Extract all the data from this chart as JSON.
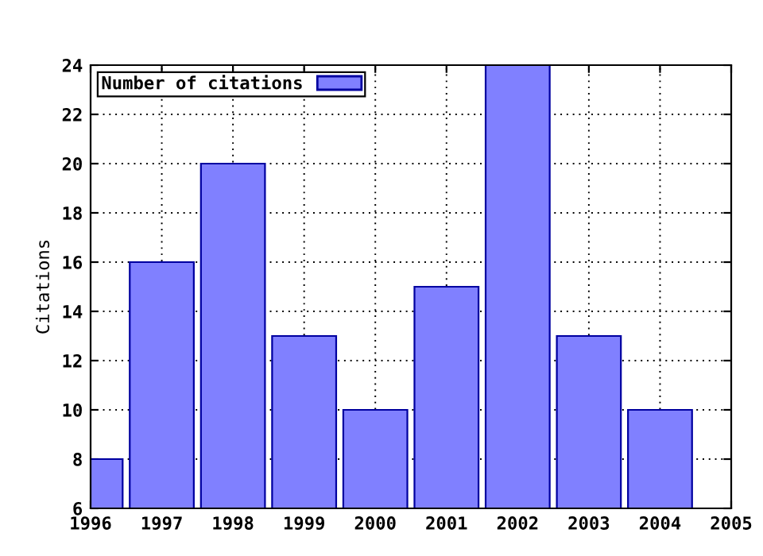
{
  "chart_data": {
    "type": "bar",
    "ylabel": "Citations",
    "x": [
      1996,
      1997,
      1998,
      1999,
      2000,
      2001,
      2002,
      2003,
      2004
    ],
    "series": [
      {
        "name": "Number of citations",
        "color": "#8080ff",
        "values": [
          8,
          16,
          20,
          13,
          10,
          15,
          24,
          13,
          10
        ]
      }
    ],
    "xlim": [
      1996,
      2005
    ],
    "xticks": [
      1996,
      1997,
      1998,
      1999,
      2000,
      2001,
      2002,
      2003,
      2004,
      2005
    ],
    "ylim": [
      6,
      24
    ],
    "yticks": [
      6,
      8,
      10,
      12,
      14,
      16,
      18,
      20,
      22,
      24
    ],
    "grid": true,
    "legend": "top left"
  }
}
